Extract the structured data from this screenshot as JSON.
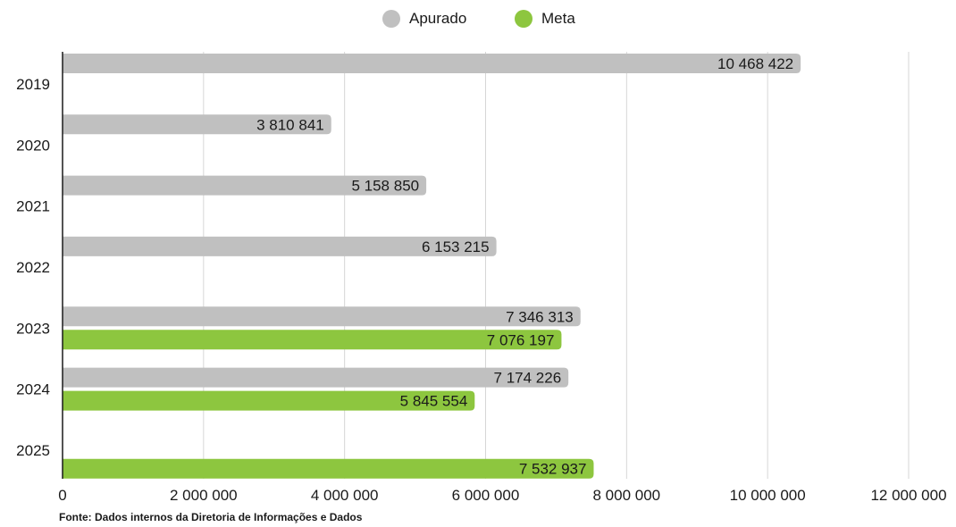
{
  "colors": {
    "apurado": "#c0c0c0",
    "meta": "#8dc63f",
    "grid": "#d6d6d6",
    "axis": "#1a1a1a"
  },
  "legend": {
    "apurado": "Apurado",
    "meta": "Meta"
  },
  "source": "Fonte:  Dados internos da Diretoria de Informações e Dados",
  "chart_data": {
    "type": "bar",
    "orientation": "horizontal",
    "categories": [
      "2019",
      "2020",
      "2021",
      "2022",
      "2023",
      "2024",
      "2025"
    ],
    "series": [
      {
        "name": "Apurado",
        "values": [
          10468422,
          3810841,
          5158850,
          6153215,
          7346313,
          7174226,
          null
        ],
        "labels": [
          "10 468 422",
          "3 810 841",
          "5 158 850",
          "6 153 215",
          "7 346 313",
          "7 174 226",
          null
        ]
      },
      {
        "name": "Meta",
        "values": [
          null,
          null,
          null,
          null,
          7076197,
          5845554,
          7532937
        ],
        "labels": [
          null,
          null,
          null,
          null,
          "7 076 197",
          "5 845 554",
          "7 532 937"
        ]
      }
    ],
    "xlim": [
      0,
      12000000
    ],
    "xticks": [
      0,
      2000000,
      4000000,
      6000000,
      8000000,
      10000000,
      12000000
    ],
    "xtick_labels": [
      "0",
      "2 000 000",
      "4 000 000",
      "6 000 000",
      "8 000 000",
      "10 000 000",
      "12 000 000"
    ],
    "grid": true,
    "legend_position": "top-center"
  }
}
